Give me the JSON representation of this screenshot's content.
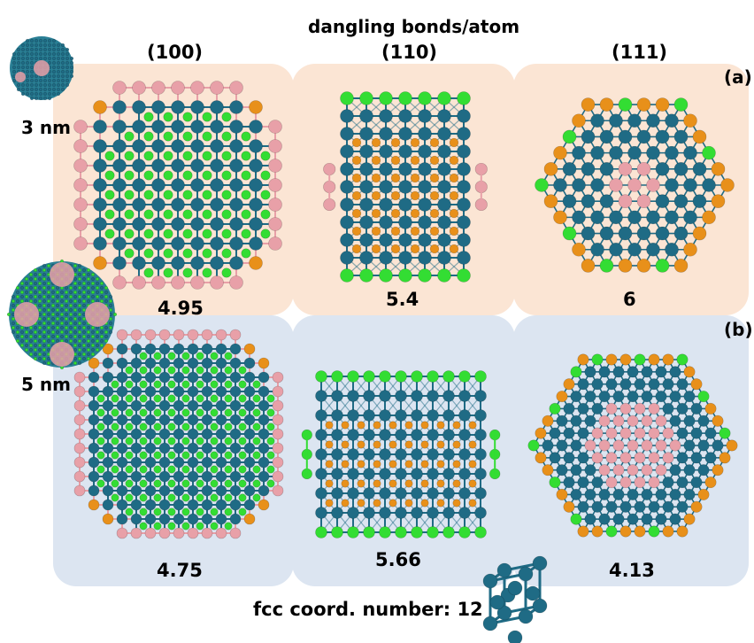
{
  "header": {
    "title": "dangling bonds/atom"
  },
  "columns": [
    "(100)",
    "(110)",
    "(111)"
  ],
  "rows": [
    {
      "tag": "(a)",
      "size_label": "3 nm",
      "values": [
        "4.95",
        "5.4",
        "6"
      ]
    },
    {
      "tag": "(b)",
      "size_label": "5 nm",
      "values": [
        "4.75",
        "5.66",
        "4.13"
      ]
    }
  ],
  "footer": {
    "text": "fcc coord. number: 12"
  },
  "colors": {
    "row_a_bg": "#fbe5d4",
    "row_b_bg": "#dce5f1",
    "atom_core": "#1f6b85",
    "atom_green": "#33dd33",
    "atom_orange": "#e8901a",
    "atom_pink": "#e8a0a8"
  }
}
